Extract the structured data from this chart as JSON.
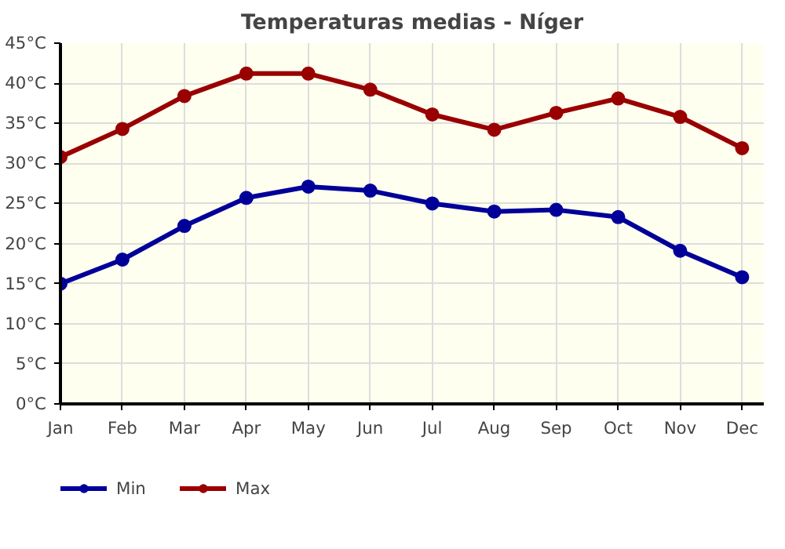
{
  "chart_data": {
    "type": "line",
    "title": "Temperaturas medias - Níger",
    "categories": [
      "Jan",
      "Feb",
      "Mar",
      "Apr",
      "May",
      "Jun",
      "Jul",
      "Aug",
      "Sep",
      "Oct",
      "Nov",
      "Dec"
    ],
    "series": [
      {
        "name": "Min",
        "color": "#000099",
        "values": [
          15.0,
          18.0,
          22.2,
          25.7,
          27.1,
          26.6,
          25.0,
          24.0,
          24.2,
          23.3,
          19.1,
          15.8
        ]
      },
      {
        "name": "Max",
        "color": "#990000",
        "values": [
          30.8,
          34.3,
          38.4,
          41.2,
          41.2,
          39.2,
          36.1,
          34.2,
          36.3,
          38.1,
          35.8,
          31.9
        ]
      }
    ],
    "ylim": [
      0,
      45
    ],
    "yticks": [
      {
        "value": 0,
        "label": "0°C"
      },
      {
        "value": 5,
        "label": "5°C"
      },
      {
        "value": 10,
        "label": "10°C"
      },
      {
        "value": 15,
        "label": "15°C"
      },
      {
        "value": 20,
        "label": "20°C"
      },
      {
        "value": 25,
        "label": "25°C"
      },
      {
        "value": 30,
        "label": "30°C"
      },
      {
        "value": 35,
        "label": "35°C"
      },
      {
        "value": 40,
        "label": "40°C"
      },
      {
        "value": 45,
        "label": "45°C"
      }
    ],
    "grid": true,
    "legend": "bottom left",
    "marker": "circle",
    "line_style": "solid"
  }
}
